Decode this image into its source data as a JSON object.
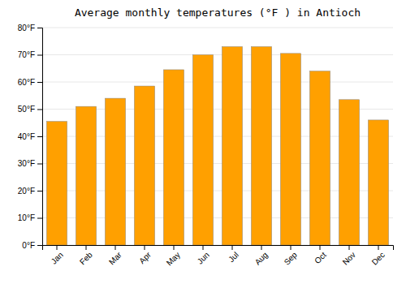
{
  "chart_data": {
    "type": "bar",
    "title": "Average monthly temperatures (°F ) in Antioch",
    "categories": [
      "Jan",
      "Feb",
      "Mar",
      "Apr",
      "May",
      "Jun",
      "Jul",
      "Aug",
      "Sep",
      "Oct",
      "Nov",
      "Dec"
    ],
    "values": [
      45.5,
      51.0,
      54.0,
      58.5,
      64.5,
      70.0,
      73.0,
      73.0,
      70.5,
      64.0,
      53.5,
      46.0
    ],
    "color": "#FFA000",
    "ylim": [
      0,
      80
    ],
    "yticks": [
      {
        "value": 0,
        "label": "0°F"
      },
      {
        "value": 10,
        "label": "10°F"
      },
      {
        "value": 20,
        "label": "20°F"
      },
      {
        "value": 30,
        "label": "30°F"
      },
      {
        "value": 40,
        "label": "40°F"
      },
      {
        "value": 50,
        "label": "50°F"
      },
      {
        "value": 60,
        "label": "60°F"
      },
      {
        "value": 70,
        "label": "70°F"
      },
      {
        "value": 80,
        "label": "80°F"
      }
    ],
    "grid": true
  }
}
